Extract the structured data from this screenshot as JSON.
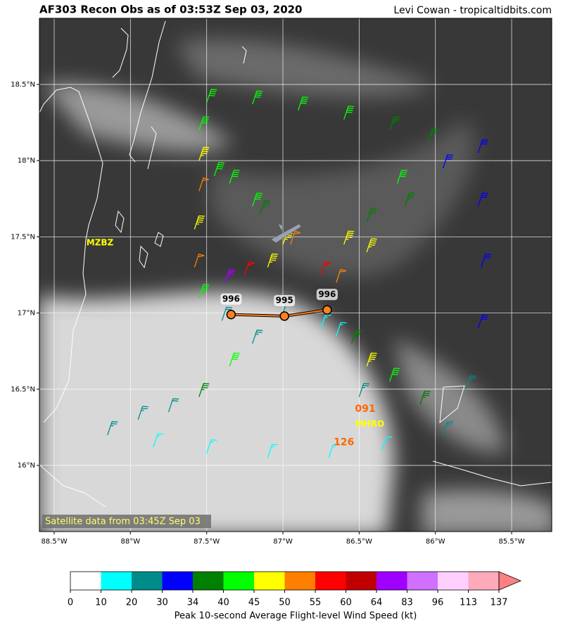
{
  "header": {
    "title": "AF303 Recon Obs as of 03:53Z Sep 03, 2020",
    "credit": "Levi Cowan - tropicaltidbits.com"
  },
  "map": {
    "lonlim": [
      -88.597,
      -85.237
    ],
    "latlim": [
      15.566,
      18.934
    ],
    "lon_ticks": [
      {
        "value": -88.5,
        "label": "88.5°W"
      },
      {
        "value": -88,
        "label": "88°W"
      },
      {
        "value": -87.5,
        "label": "87.5°W"
      },
      {
        "value": -87,
        "label": "87°W"
      },
      {
        "value": -86.5,
        "label": "86.5°W"
      },
      {
        "value": -86,
        "label": "86°W"
      },
      {
        "value": -85.5,
        "label": "85.5°W"
      }
    ],
    "lat_ticks": [
      {
        "value": 16,
        "label": "16°N"
      },
      {
        "value": 16.5,
        "label": "16.5°N"
      },
      {
        "value": 17,
        "label": "17°N"
      },
      {
        "value": 17.5,
        "label": "17.5°N"
      },
      {
        "value": 18,
        "label": "18°N"
      },
      {
        "value": 18.5,
        "label": "18.5°N"
      }
    ],
    "grid": true,
    "satellite_note": "Satellite data from 03:45Z Sep 03",
    "stations": [
      {
        "label": "MZBZ",
        "lon": -88.2,
        "lat": 17.46,
        "color": "#ffff00"
      },
      {
        "label": "MHRO",
        "lon": -86.43,
        "lat": 16.27,
        "color": "#ffff00"
      }
    ],
    "station_values": [
      {
        "text": "091",
        "lon": -86.46,
        "lat": 16.37,
        "color": "#ff6600"
      },
      {
        "text": "126",
        "lon": -86.6,
        "lat": 16.15,
        "color": "#ff6600"
      }
    ],
    "pressure_obs": [
      {
        "value": 996,
        "lon": -87.34,
        "lat": 16.99
      },
      {
        "value": 995,
        "lon": -86.99,
        "lat": 16.98
      },
      {
        "value": 996,
        "lon": -86.71,
        "lat": 17.02
      }
    ],
    "track": [
      {
        "lon": -88.15,
        "lat": 16.2,
        "wind": 25
      },
      {
        "lon": -87.95,
        "lat": 16.3,
        "wind": 28
      },
      {
        "lon": -87.75,
        "lat": 16.35,
        "wind": 24
      },
      {
        "lon": -87.55,
        "lat": 16.45,
        "wind": 36
      },
      {
        "lon": -87.35,
        "lat": 16.65,
        "wind": 41
      },
      {
        "lon": -87.2,
        "lat": 16.8,
        "wind": 25
      },
      {
        "lon": -87.4,
        "lat": 16.95,
        "wind": 24
      },
      {
        "lon": -87.55,
        "lat": 17.1,
        "wind": 42
      },
      {
        "lon": -87.58,
        "lat": 17.3,
        "wind": 52
      },
      {
        "lon": -87.58,
        "lat": 17.55,
        "wind": 47
      },
      {
        "lon": -87.55,
        "lat": 17.8,
        "wind": 52
      },
      {
        "lon": -87.55,
        "lat": 18.0,
        "wind": 47
      },
      {
        "lon": -87.55,
        "lat": 18.2,
        "wind": 43
      },
      {
        "lon": -87.5,
        "lat": 18.38,
        "wind": 41
      },
      {
        "lon": -87.2,
        "lat": 18.37,
        "wind": 43
      },
      {
        "lon": -86.9,
        "lat": 18.33,
        "wind": 41
      },
      {
        "lon": -86.6,
        "lat": 18.27,
        "wind": 42
      },
      {
        "lon": -86.3,
        "lat": 18.2,
        "wind": 38
      },
      {
        "lon": -86.05,
        "lat": 18.12,
        "wind": 36
      },
      {
        "lon": -86.25,
        "lat": 17.85,
        "wind": 41
      },
      {
        "lon": -86.45,
        "lat": 17.6,
        "wind": 38
      },
      {
        "lon": -86.6,
        "lat": 17.45,
        "wind": 47
      },
      {
        "lon": -86.75,
        "lat": 17.25,
        "wind": 58
      },
      {
        "lon": -86.95,
        "lat": 17.45,
        "wind": 52
      },
      {
        "lon": -87.15,
        "lat": 17.65,
        "wind": 38
      },
      {
        "lon": -87.35,
        "lat": 17.85,
        "wind": 42
      },
      {
        "lon": -87.45,
        "lat": 17.9,
        "wind": 40
      },
      {
        "lon": -87.2,
        "lat": 17.7,
        "wind": 44
      },
      {
        "lon": -87.0,
        "lat": 17.45,
        "wind": 48
      },
      {
        "lon": -87.1,
        "lat": 17.3,
        "wind": 47
      },
      {
        "lon": -87.25,
        "lat": 17.25,
        "wind": 58
      },
      {
        "lon": -87.38,
        "lat": 17.2,
        "wind": 75
      },
      {
        "lon": -87.0,
        "lat": 17.0,
        "wind": 22
      },
      {
        "lon": -86.75,
        "lat": 16.9,
        "wind": 18
      },
      {
        "lon": -86.55,
        "lat": 16.8,
        "wind": 36
      },
      {
        "lon": -86.45,
        "lat": 16.65,
        "wind": 47
      },
      {
        "lon": -86.3,
        "lat": 16.55,
        "wind": 41
      },
      {
        "lon": -86.1,
        "lat": 16.4,
        "wind": 37
      },
      {
        "lon": -85.95,
        "lat": 16.2,
        "wind": 26
      },
      {
        "lon": -85.8,
        "lat": 16.5,
        "wind": 25
      },
      {
        "lon": -85.72,
        "lat": 16.9,
        "wind": 32
      },
      {
        "lon": -85.7,
        "lat": 17.3,
        "wind": 33
      },
      {
        "lon": -85.72,
        "lat": 17.7,
        "wind": 32
      },
      {
        "lon": -85.72,
        "lat": 18.05,
        "wind": 31
      },
      {
        "lon": -85.95,
        "lat": 17.95,
        "wind": 33
      },
      {
        "lon": -86.2,
        "lat": 17.7,
        "wind": 38
      },
      {
        "lon": -86.45,
        "lat": 17.4,
        "wind": 47
      },
      {
        "lon": -86.65,
        "lat": 17.2,
        "wind": 53
      },
      {
        "lon": -86.65,
        "lat": 16.85,
        "wind": 15
      },
      {
        "lon": -86.5,
        "lat": 16.45,
        "wind": 27
      },
      {
        "lon": -86.35,
        "lat": 16.1,
        "wind": 14
      },
      {
        "lon": -86.7,
        "lat": 16.05,
        "wind": 16
      },
      {
        "lon": -87.1,
        "lat": 16.05,
        "wind": 15
      },
      {
        "lon": -87.5,
        "lat": 16.08,
        "wind": 17
      },
      {
        "lon": -87.85,
        "lat": 16.12,
        "wind": 18
      }
    ]
  },
  "colorbar": {
    "label": "Peak 10-second Average Flight-level Wind Speed (kt)",
    "bounds": [
      0,
      10,
      20,
      30,
      34,
      40,
      45,
      50,
      55,
      60,
      64,
      83,
      96,
      113,
      137
    ],
    "colors": [
      "#ffffff",
      "#00ffff",
      "#008b8b",
      "#0000ff",
      "#008000",
      "#00ff00",
      "#ffff00",
      "#ff7f00",
      "#ff0000",
      "#c00000",
      "#a000ff",
      "#d070ff",
      "#ffd0ff",
      "#ffaabb"
    ],
    "over_color": "#ff8080"
  }
}
